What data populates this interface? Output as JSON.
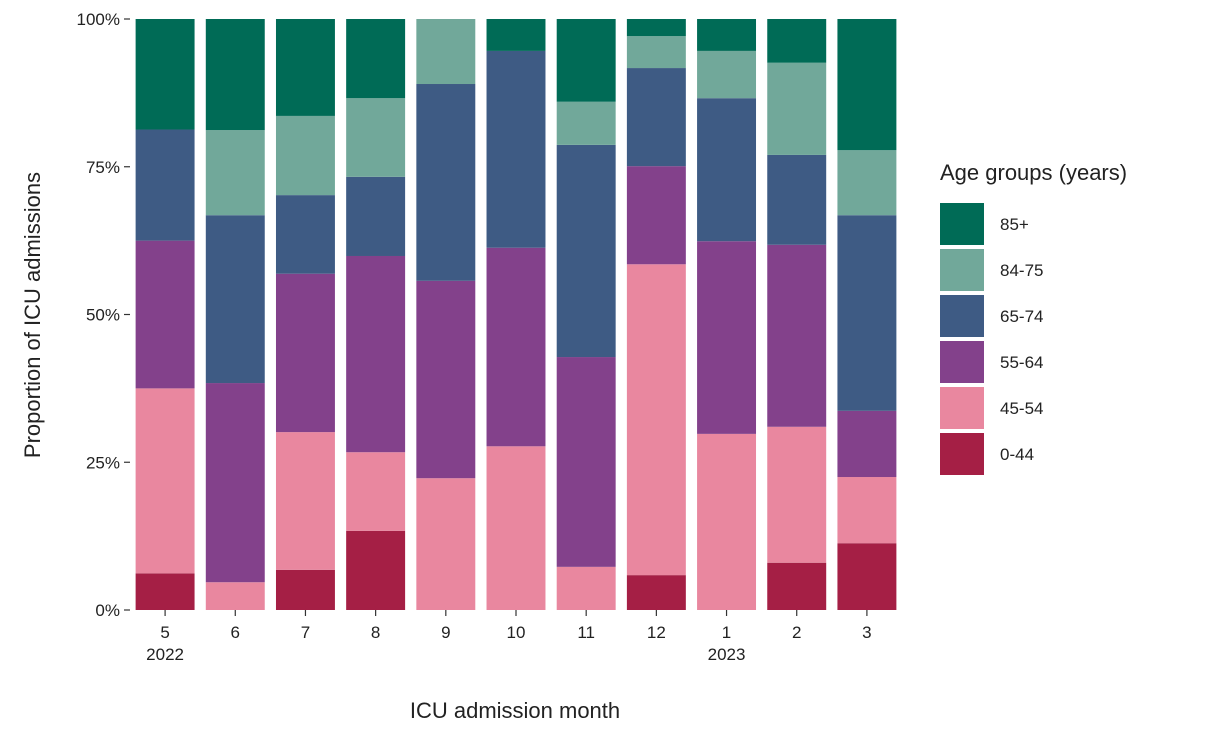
{
  "chart_data": {
    "type": "stacked_bar",
    "x_label": "ICU admission month",
    "y_label": "Proportion of ICU admissions",
    "legend_title": "Age groups (years)",
    "categories": [
      "5",
      "6",
      "7",
      "8",
      "9",
      "10",
      "11",
      "12",
      "1",
      "2",
      "3"
    ],
    "years": [
      "2022",
      null,
      null,
      null,
      null,
      null,
      null,
      null,
      "2023",
      null,
      null
    ],
    "ylim": [
      0,
      100
    ],
    "yticks": [
      {
        "value": 0,
        "label": "0%"
      },
      {
        "value": 25,
        "label": "25%"
      },
      {
        "value": 50,
        "label": "50%"
      },
      {
        "value": 75,
        "label": "75%"
      },
      {
        "value": 100,
        "label": "100%"
      }
    ],
    "series": [
      {
        "name": "0-44",
        "color": "#a51f45",
        "values": [
          6.2,
          0,
          6.8,
          13.4,
          0,
          0,
          0,
          5.9,
          0,
          8,
          11.3
        ]
      },
      {
        "name": "45-54",
        "color": "#e9879f",
        "values": [
          31.3,
          4.7,
          23.3,
          13.3,
          22.3,
          27.7,
          7.3,
          52.6,
          29.8,
          23,
          11.2
        ]
      },
      {
        "name": "55-64",
        "color": "#83418b",
        "values": [
          25,
          33.7,
          26.8,
          33.2,
          33.4,
          33.6,
          35.5,
          16.6,
          32.6,
          30.8,
          11.2
        ]
      },
      {
        "name": "65-74",
        "color": "#3e5b84",
        "values": [
          18.8,
          28.4,
          13.3,
          13.4,
          33.3,
          33.3,
          35.9,
          16.6,
          24.2,
          15.2,
          33.1
        ]
      },
      {
        "name": "84-75",
        "color": "#71a89a",
        "values": [
          0,
          14.4,
          13.4,
          13.3,
          11,
          0,
          7.3,
          5.4,
          8,
          15.6,
          11
        ]
      },
      {
        "name": "85+",
        "color": "#006b56",
        "values": [
          18.7,
          18.8,
          16.4,
          13.4,
          0,
          5.4,
          14,
          2.9,
          5.4,
          7.4,
          22.2
        ]
      }
    ]
  }
}
